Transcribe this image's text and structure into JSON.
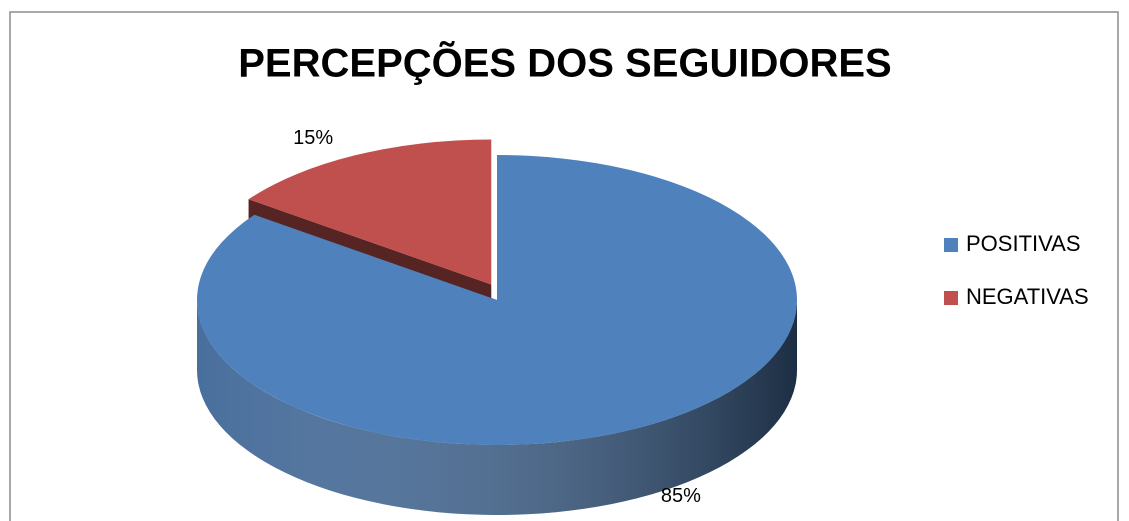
{
  "chart_data": {
    "type": "pie",
    "title": "PERCEPÇÕES DOS SEGUIDORES",
    "categories": [
      "POSITIVAS",
      "NEGATIVAS"
    ],
    "values": [
      85,
      15
    ],
    "value_labels": [
      "85%",
      "15%"
    ],
    "colors": [
      "#4f81bd",
      "#c0504d"
    ],
    "legend": "right"
  }
}
